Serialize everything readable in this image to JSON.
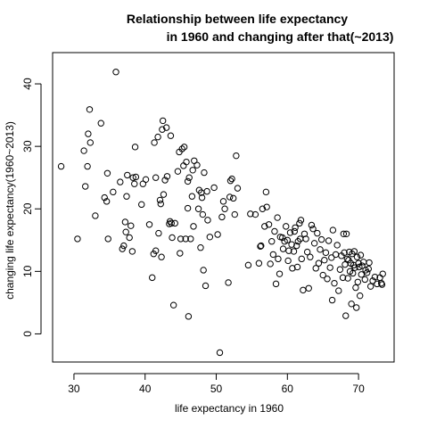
{
  "chart_data": {
    "type": "scatter",
    "title_line1": "Relationship between life expectancy",
    "title_line2": "in 1960 and changing after that(~2013)",
    "xlabel": "life expectancy in 1960",
    "ylabel": "changing life expectancy(1960~2013)",
    "xlim": [
      27,
      75
    ],
    "ylim": [
      -4.5,
      45
    ],
    "xticks": [
      30,
      40,
      50,
      60,
      70
    ],
    "yticks": [
      0,
      10,
      20,
      30,
      40
    ],
    "grid": false,
    "legend": "none",
    "point_color": "#000000",
    "points": [
      [
        28.2,
        26.8
      ],
      [
        30.5,
        15.2
      ],
      [
        31.4,
        29.3
      ],
      [
        31.6,
        23.6
      ],
      [
        31.9,
        26.8
      ],
      [
        32.2,
        35.9
      ],
      [
        32.3,
        30.6
      ],
      [
        32.0,
        32.0
      ],
      [
        33.0,
        18.9
      ],
      [
        33.8,
        33.7
      ],
      [
        34.3,
        21.8
      ],
      [
        34.6,
        21.2
      ],
      [
        34.7,
        25.7
      ],
      [
        34.8,
        15.2
      ],
      [
        35.5,
        22.7
      ],
      [
        35.9,
        41.9
      ],
      [
        36.5,
        24.3
      ],
      [
        36.8,
        13.6
      ],
      [
        37.0,
        14.1
      ],
      [
        37.2,
        17.9
      ],
      [
        37.3,
        16.3
      ],
      [
        37.4,
        22.0
      ],
      [
        37.5,
        25.4
      ],
      [
        37.8,
        15.4
      ],
      [
        38.0,
        17.3
      ],
      [
        38.2,
        13.2
      ],
      [
        38.3,
        25.0
      ],
      [
        38.5,
        24.0
      ],
      [
        38.6,
        29.9
      ],
      [
        38.7,
        25.1
      ],
      [
        39.5,
        20.7
      ],
      [
        39.7,
        24.0
      ],
      [
        40.1,
        24.7
      ],
      [
        40.6,
        17.5
      ],
      [
        41.0,
        9.0
      ],
      [
        41.2,
        12.8
      ],
      [
        41.3,
        30.6
      ],
      [
        41.5,
        13.3
      ],
      [
        41.5,
        25.0
      ],
      [
        41.8,
        31.5
      ],
      [
        41.9,
        16.1
      ],
      [
        42.1,
        21.4
      ],
      [
        42.2,
        20.8
      ],
      [
        42.3,
        12.3
      ],
      [
        42.4,
        32.7
      ],
      [
        42.5,
        34.1
      ],
      [
        42.6,
        22.3
      ],
      [
        42.8,
        24.6
      ],
      [
        43.0,
        33.0
      ],
      [
        43.1,
        25.2
      ],
      [
        43.4,
        17.6
      ],
      [
        43.5,
        18.0
      ],
      [
        43.6,
        31.7
      ],
      [
        43.7,
        17.7
      ],
      [
        43.8,
        15.4
      ],
      [
        44.0,
        4.6
      ],
      [
        44.2,
        17.7
      ],
      [
        44.6,
        26.0
      ],
      [
        44.8,
        29.1
      ],
      [
        44.9,
        12.9
      ],
      [
        45.0,
        15.2
      ],
      [
        45.2,
        29.6
      ],
      [
        45.4,
        26.9
      ],
      [
        45.5,
        29.9
      ],
      [
        45.7,
        15.2
      ],
      [
        45.8,
        27.5
      ],
      [
        46.0,
        20.1
      ],
      [
        46.0,
        24.4
      ],
      [
        46.1,
        2.8
      ],
      [
        46.2,
        25.0
      ],
      [
        46.4,
        15.2
      ],
      [
        46.6,
        22.0
      ],
      [
        46.7,
        26.2
      ],
      [
        46.8,
        17.2
      ],
      [
        46.9,
        27.7
      ],
      [
        47.3,
        27.0
      ],
      [
        47.5,
        20.0
      ],
      [
        47.6,
        23.0
      ],
      [
        47.8,
        13.8
      ],
      [
        47.9,
        22.6
      ],
      [
        48.0,
        21.8
      ],
      [
        48.1,
        19.1
      ],
      [
        48.2,
        10.2
      ],
      [
        48.3,
        25.8
      ],
      [
        48.5,
        7.7
      ],
      [
        48.7,
        22.8
      ],
      [
        48.8,
        18.2
      ],
      [
        49.1,
        15.5
      ],
      [
        49.7,
        23.4
      ],
      [
        50.2,
        15.9
      ],
      [
        50.5,
        -3.0
      ],
      [
        50.8,
        18.7
      ],
      [
        51.0,
        21.2
      ],
      [
        51.2,
        20.0
      ],
      [
        51.7,
        8.2
      ],
      [
        51.9,
        21.9
      ],
      [
        52.0,
        24.5
      ],
      [
        52.2,
        24.8
      ],
      [
        52.4,
        21.7
      ],
      [
        52.6,
        19.1
      ],
      [
        52.8,
        28.5
      ],
      [
        53.0,
        23.3
      ],
      [
        54.5,
        11.0
      ],
      [
        54.8,
        19.2
      ],
      [
        55.5,
        19.1
      ],
      [
        56.0,
        11.3
      ],
      [
        56.2,
        14.0
      ],
      [
        56.3,
        14.1
      ],
      [
        56.5,
        20.0
      ],
      [
        56.8,
        17.2
      ],
      [
        57.0,
        22.7
      ],
      [
        57.1,
        20.3
      ],
      [
        57.4,
        17.5
      ],
      [
        57.6,
        11.2
      ],
      [
        57.8,
        14.8
      ],
      [
        58.0,
        12.7
      ],
      [
        58.2,
        16.4
      ],
      [
        58.4,
        8.0
      ],
      [
        58.6,
        18.6
      ],
      [
        58.7,
        12.0
      ],
      [
        58.9,
        9.6
      ],
      [
        59.0,
        15.5
      ],
      [
        59.3,
        15.4
      ],
      [
        59.4,
        13.6
      ],
      [
        59.6,
        14.8
      ],
      [
        59.8,
        17.2
      ],
      [
        60.0,
        15.0
      ],
      [
        60.1,
        11.7
      ],
      [
        60.2,
        13.3
      ],
      [
        60.4,
        16.2
      ],
      [
        60.6,
        14.3
      ],
      [
        60.7,
        10.5
      ],
      [
        60.9,
        13.2
      ],
      [
        61.0,
        16.4
      ],
      [
        61.1,
        17.0
      ],
      [
        61.3,
        14.1
      ],
      [
        61.4,
        10.7
      ],
      [
        61.5,
        14.8
      ],
      [
        61.7,
        17.7
      ],
      [
        61.8,
        15.2
      ],
      [
        61.9,
        18.2
      ],
      [
        62.0,
        12.0
      ],
      [
        62.2,
        7.0
      ],
      [
        62.4,
        16.0
      ],
      [
        62.6,
        15.2
      ],
      [
        62.8,
        13.1
      ],
      [
        63.0,
        7.3
      ],
      [
        63.2,
        12.3
      ],
      [
        63.4,
        17.4
      ],
      [
        63.6,
        16.8
      ],
      [
        63.8,
        14.5
      ],
      [
        64.0,
        10.5
      ],
      [
        64.2,
        16.1
      ],
      [
        64.4,
        11.3
      ],
      [
        64.6,
        13.5
      ],
      [
        64.8,
        15.1
      ],
      [
        65.0,
        9.4
      ],
      [
        65.2,
        11.8
      ],
      [
        65.4,
        13.0
      ],
      [
        65.6,
        8.8
      ],
      [
        65.8,
        14.9
      ],
      [
        66.0,
        10.6
      ],
      [
        66.2,
        12.2
      ],
      [
        66.4,
        16.6
      ],
      [
        66.6,
        8.1
      ],
      [
        66.8,
        12.7
      ],
      [
        67.0,
        14.2
      ],
      [
        67.2,
        6.9
      ],
      [
        67.4,
        10.3
      ],
      [
        67.6,
        12.5
      ],
      [
        67.8,
        9.0
      ],
      [
        68.0,
        13.0
      ],
      [
        68.1,
        11.1
      ],
      [
        68.2,
        2.9
      ],
      [
        68.4,
        12.0
      ],
      [
        68.5,
        8.9
      ],
      [
        68.6,
        11.8
      ],
      [
        68.7,
        13.1
      ],
      [
        68.8,
        10.0
      ],
      [
        68.9,
        11.3
      ],
      [
        69.0,
        4.8
      ],
      [
        69.1,
        12.8
      ],
      [
        69.2,
        9.7
      ],
      [
        69.3,
        11.0
      ],
      [
        69.4,
        13.2
      ],
      [
        69.5,
        10.6
      ],
      [
        69.6,
        7.4
      ],
      [
        69.7,
        4.2
      ],
      [
        69.8,
        12.3
      ],
      [
        69.9,
        8.3
      ],
      [
        70.0,
        11.3
      ],
      [
        70.1,
        10.7
      ],
      [
        70.2,
        6.1
      ],
      [
        70.3,
        12.6
      ],
      [
        70.4,
        9.5
      ],
      [
        70.5,
        10.9
      ],
      [
        70.7,
        11.5
      ],
      [
        70.9,
        8.7
      ],
      [
        71.0,
        10.2
      ],
      [
        71.2,
        9.8
      ],
      [
        71.4,
        10.4
      ],
      [
        71.5,
        11.4
      ],
      [
        71.7,
        7.6
      ],
      [
        72.0,
        8.5
      ],
      [
        72.3,
        9.1
      ],
      [
        72.6,
        8.0
      ],
      [
        73.0,
        9.0
      ],
      [
        73.2,
        8.1
      ],
      [
        73.3,
        7.9
      ],
      [
        73.4,
        9.6
      ],
      [
        67.9,
        16.0
      ],
      [
        66.3,
        5.4
      ],
      [
        68.3,
        16.0
      ]
    ]
  }
}
